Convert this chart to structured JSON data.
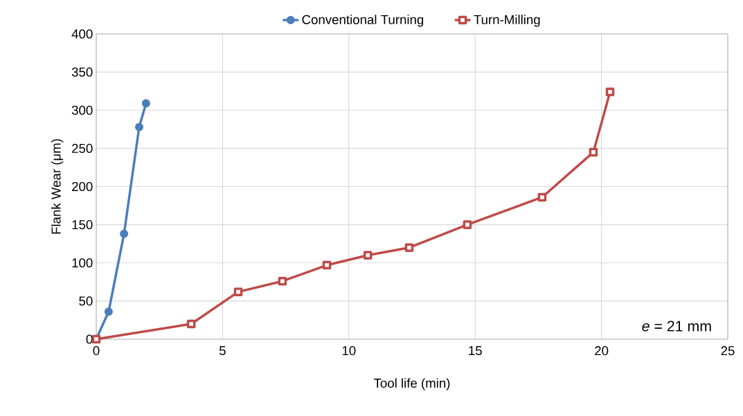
{
  "chart_data": {
    "type": "line",
    "xlabel": "Tool life (min)",
    "ylabel": "Flank Wear (μm)",
    "xlim": [
      0,
      25
    ],
    "xticks": [
      0,
      5,
      10,
      15,
      20,
      25
    ],
    "ylim": [
      0,
      400
    ],
    "yticks": [
      0,
      50,
      100,
      150,
      200,
      250,
      300,
      350,
      400
    ],
    "grid": true,
    "legend": "top",
    "annotations": [
      "*e* = 21 mm"
    ],
    "series": [
      {
        "name": "Conventional Turning",
        "color": "#4a7ebb",
        "marker": "circle",
        "x": [
          0,
          0.49,
          1.1,
          1.7,
          1.97
        ],
        "values": [
          0,
          36,
          138,
          278,
          309
        ]
      },
      {
        "name": "Turn-Milling",
        "color": "#be4b48",
        "marker": "square",
        "x": [
          0,
          3.76,
          5.62,
          7.37,
          9.13,
          10.75,
          12.39,
          14.69,
          17.65,
          19.68,
          20.34
        ],
        "values": [
          0,
          20,
          62,
          76,
          97,
          110,
          120,
          150,
          186,
          245,
          324
        ]
      }
    ]
  }
}
